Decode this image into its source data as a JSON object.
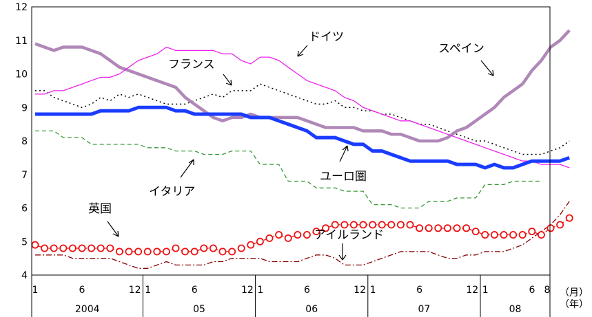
{
  "chart_data": {
    "type": "line",
    "ylim": [
      4,
      12
    ],
    "y_ticks": [
      "4",
      "5",
      "6",
      "7",
      "8",
      "9",
      "10",
      "11",
      "12"
    ],
    "month_ticks": [
      "1",
      "6",
      "12",
      "1",
      "6",
      "12",
      "1",
      "6",
      "12",
      "1",
      "6",
      "12",
      "1",
      "6",
      "8"
    ],
    "years": [
      "2004",
      "05",
      "06",
      "07",
      "08"
    ],
    "axis_unit_month": "（月）",
    "axis_unit_year": "（年）",
    "grid": false,
    "legend": "inline-annotations",
    "series": [
      {
        "name": "スペイン",
        "color": "#b088b8",
        "values": [
          10.9,
          10.8,
          10.7,
          10.8,
          10.8,
          10.8,
          10.7,
          10.6,
          10.4,
          10.2,
          10.1,
          10.0,
          9.9,
          9.8,
          9.7,
          9.6,
          9.3,
          9.1,
          8.9,
          8.7,
          8.6,
          8.7,
          8.7,
          8.8,
          8.7,
          8.7,
          8.7,
          8.7,
          8.7,
          8.6,
          8.5,
          8.4,
          8.4,
          8.4,
          8.4,
          8.3,
          8.3,
          8.3,
          8.2,
          8.2,
          8.1,
          8.0,
          8.0,
          8.0,
          8.1,
          8.3,
          8.4,
          8.6,
          8.8,
          9.0,
          9.3,
          9.5,
          9.7,
          10.1,
          10.4,
          10.8,
          11.0,
          11.3
        ]
      },
      {
        "name": "ドイツ",
        "color": "#ee22ee",
        "values": [
          9.4,
          9.4,
          9.5,
          9.5,
          9.6,
          9.7,
          9.8,
          9.9,
          9.9,
          10.0,
          10.2,
          10.4,
          10.5,
          10.6,
          10.8,
          10.7,
          10.7,
          10.7,
          10.7,
          10.7,
          10.6,
          10.6,
          10.4,
          10.3,
          10.5,
          10.5,
          10.4,
          10.2,
          10.0,
          9.8,
          9.7,
          9.6,
          9.5,
          9.3,
          9.2,
          9.0,
          8.9,
          8.8,
          8.7,
          8.6,
          8.6,
          8.5,
          8.4,
          8.3,
          8.2,
          8.1,
          8.0,
          7.9,
          7.8,
          7.7,
          7.6,
          7.5,
          7.4,
          7.4,
          7.3,
          7.3,
          7.3,
          7.2
        ]
      },
      {
        "name": "フランス",
        "color": "#000000",
        "values": [
          9.5,
          9.5,
          9.3,
          9.2,
          9.1,
          9.0,
          9.1,
          9.3,
          9.2,
          9.4,
          9.3,
          9.4,
          9.3,
          9.2,
          9.1,
          9.1,
          9.1,
          9.2,
          9.3,
          9.4,
          9.3,
          9.5,
          9.5,
          9.5,
          9.7,
          9.6,
          9.5,
          9.4,
          9.3,
          9.2,
          9.1,
          9.1,
          9.2,
          9.0,
          9.0,
          8.9,
          8.9,
          8.8,
          8.8,
          8.7,
          8.6,
          8.5,
          8.5,
          8.4,
          8.3,
          8.2,
          8.1,
          8.0,
          8.0,
          7.9,
          7.8,
          7.7,
          7.6,
          7.6,
          7.6,
          7.7,
          7.8,
          8.0
        ]
      },
      {
        "name": "ユーロ圏",
        "color": "#1a3cff",
        "values": [
          8.8,
          8.8,
          8.8,
          8.8,
          8.8,
          8.8,
          8.8,
          8.9,
          8.9,
          8.9,
          8.9,
          9.0,
          9.0,
          9.0,
          9.0,
          8.9,
          8.9,
          8.8,
          8.8,
          8.8,
          8.8,
          8.8,
          8.8,
          8.7,
          8.7,
          8.7,
          8.6,
          8.5,
          8.4,
          8.3,
          8.1,
          8.1,
          8.1,
          8.0,
          7.9,
          7.9,
          7.7,
          7.7,
          7.6,
          7.5,
          7.4,
          7.4,
          7.4,
          7.4,
          7.4,
          7.3,
          7.3,
          7.3,
          7.2,
          7.3,
          7.2,
          7.2,
          7.3,
          7.4,
          7.4,
          7.4,
          7.4,
          7.5
        ]
      },
      {
        "name": "イタリア",
        "color": "#339933",
        "values": [
          8.3,
          8.3,
          8.3,
          8.1,
          8.1,
          8.1,
          7.9,
          7.9,
          7.9,
          7.9,
          7.9,
          7.9,
          7.8,
          7.8,
          7.8,
          7.7,
          7.7,
          7.7,
          7.6,
          7.6,
          7.6,
          7.7,
          7.7,
          7.7,
          7.3,
          7.3,
          7.3,
          6.8,
          6.8,
          6.8,
          6.6,
          6.6,
          6.6,
          6.5,
          6.5,
          6.5,
          6.1,
          6.1,
          6.1,
          6.0,
          6.0,
          6.0,
          6.2,
          6.2,
          6.2,
          6.3,
          6.3,
          6.3,
          6.7,
          6.7,
          6.7,
          6.8,
          6.8,
          6.8,
          6.8
        ]
      },
      {
        "name": "英国",
        "color": "#ee1111",
        "values": [
          4.9,
          4.8,
          4.8,
          4.8,
          4.8,
          4.8,
          4.8,
          4.8,
          4.8,
          4.7,
          4.7,
          4.7,
          4.7,
          4.7,
          4.7,
          4.8,
          4.7,
          4.7,
          4.8,
          4.8,
          4.7,
          4.7,
          4.8,
          4.9,
          5.0,
          5.1,
          5.2,
          5.1,
          5.2,
          5.2,
          5.3,
          5.4,
          5.5,
          5.5,
          5.5,
          5.5,
          5.5,
          5.5,
          5.5,
          5.5,
          5.5,
          5.4,
          5.4,
          5.4,
          5.4,
          5.4,
          5.4,
          5.3,
          5.2,
          5.2,
          5.2,
          5.2,
          5.2,
          5.3,
          5.2,
          5.4,
          5.5,
          5.7
        ]
      },
      {
        "name": "アイルランド",
        "color": "#880000",
        "values": [
          4.6,
          4.6,
          4.6,
          4.6,
          4.5,
          4.5,
          4.5,
          4.5,
          4.5,
          4.4,
          4.3,
          4.2,
          4.2,
          4.3,
          4.4,
          4.3,
          4.3,
          4.3,
          4.3,
          4.4,
          4.4,
          4.5,
          4.5,
          4.5,
          4.5,
          4.4,
          4.4,
          4.4,
          4.4,
          4.5,
          4.6,
          4.6,
          4.5,
          4.3,
          4.3,
          4.3,
          4.4,
          4.5,
          4.6,
          4.7,
          4.7,
          4.7,
          4.7,
          4.6,
          4.5,
          4.5,
          4.6,
          4.6,
          4.7,
          4.7,
          4.7,
          4.8,
          4.9,
          5.1,
          5.3,
          5.5,
          5.8,
          6.2
        ]
      }
    ]
  }
}
